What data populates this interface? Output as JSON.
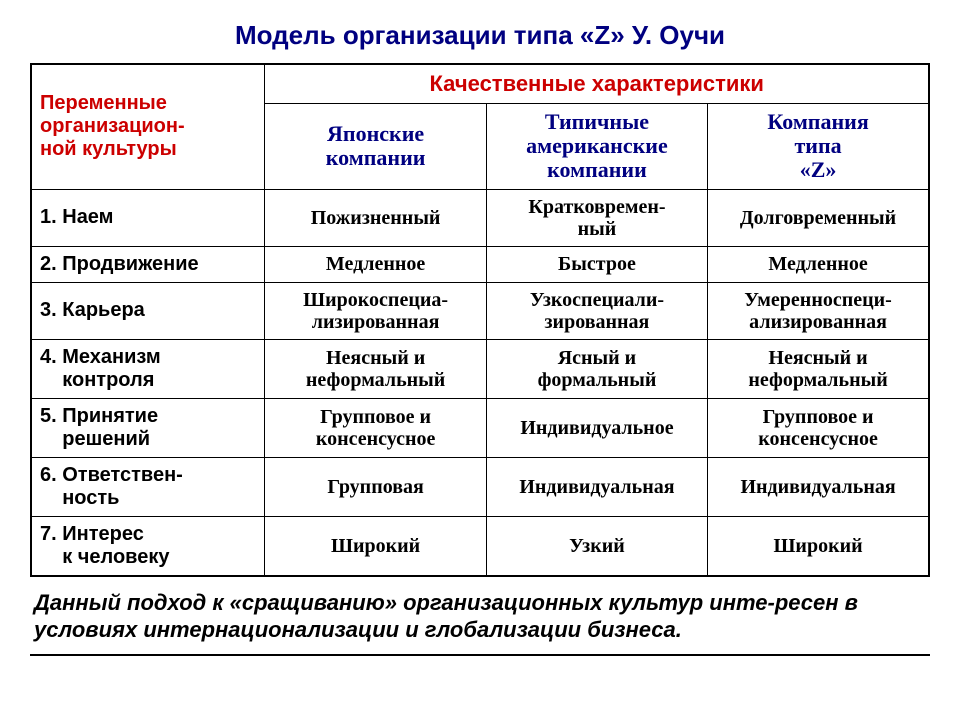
{
  "colors": {
    "title": "#000080",
    "header_qual": "#cc0000",
    "row_header": "#cc0000",
    "subcol": "#000080",
    "cell_text": "#000000",
    "border": "#000000",
    "background": "#ffffff"
  },
  "fonts": {
    "title_size_pt": 20,
    "header_size_pt": 17,
    "cell_size_pt": 15,
    "caption_size_pt": 17
  },
  "title": "Модель организации типа «Z» У. Оучи",
  "table": {
    "row_header": "Переменные организацион-ной культуры",
    "group_header": "Качественные характеристики",
    "columns": [
      "Японские компании",
      "Типичные американские компании",
      "Компания типа «Z»"
    ],
    "rows": [
      {
        "n": "1.",
        "label": "Наем",
        "cells": [
          "Пожизненный",
          "Кратковремен-ный",
          "Долговременный"
        ]
      },
      {
        "n": "2.",
        "label": "Продвижение",
        "cells": [
          "Медленное",
          "Быстрое",
          "Медленное"
        ]
      },
      {
        "n": "3.",
        "label": "Карьера",
        "cells": [
          "Широкоспециа-лизированная",
          "Узкоспециали-зированная",
          "Умеренноспеци-ализированная"
        ]
      },
      {
        "n": "4.",
        "label": "Механизм контроля",
        "cells": [
          "Неясный и неформальный",
          "Ясный и формальный",
          "Неясный и неформальный"
        ]
      },
      {
        "n": "5.",
        "label": "Принятие решений",
        "cells": [
          "Групповое и консенсусное",
          "Индивидуальное",
          "Групповое и консенсусное"
        ]
      },
      {
        "n": "6.",
        "label": "Ответствен-ность",
        "cells": [
          "Групповая",
          "Индивидуальная",
          "Индивидуальная"
        ]
      },
      {
        "n": "7.",
        "label": "Интерес к человеку",
        "cells": [
          "Широкий",
          "Узкий",
          "Широкий"
        ]
      }
    ]
  },
  "caption": "Данный подход к «сращиванию» организационных культур инте-ресен в условиях интернационализации и глобализации бизнеса."
}
